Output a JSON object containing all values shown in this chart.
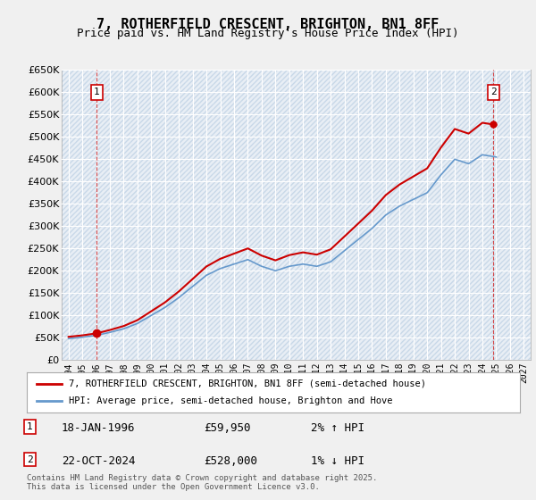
{
  "title": "7, ROTHERFIELD CRESCENT, BRIGHTON, BN1 8FF",
  "subtitle": "Price paid vs. HM Land Registry's House Price Index (HPI)",
  "bg_color": "#dde8f0",
  "plot_bg_color": "#e8eef5",
  "grid_color": "#ffffff",
  "hatch_color": "#c8d8e8",
  "red_line_color": "#cc0000",
  "blue_line_color": "#6699cc",
  "sale1_year": 1996.05,
  "sale1_price": 59950,
  "sale2_year": 2024.81,
  "sale2_price": 528000,
  "legend_line1": "7, ROTHERFIELD CRESCENT, BRIGHTON, BN1 8FF (semi-detached house)",
  "legend_line2": "HPI: Average price, semi-detached house, Brighton and Hove",
  "annotation1_date": "18-JAN-1996",
  "annotation1_price": "£59,950",
  "annotation1_hpi": "2% ↑ HPI",
  "annotation2_date": "22-OCT-2024",
  "annotation2_price": "£528,000",
  "annotation2_hpi": "1% ↓ HPI",
  "footer": "Contains HM Land Registry data © Crown copyright and database right 2025.\nThis data is licensed under the Open Government Licence v3.0.",
  "ylim": [
    0,
    650000
  ],
  "yticks": [
    0,
    50000,
    100000,
    150000,
    200000,
    250000,
    300000,
    350000,
    400000,
    450000,
    500000,
    550000,
    600000,
    650000
  ],
  "xlabel_years": [
    1994,
    1995,
    1996,
    1997,
    1998,
    1999,
    2000,
    2001,
    2002,
    2003,
    2004,
    2005,
    2006,
    2007,
    2008,
    2009,
    2010,
    2011,
    2012,
    2013,
    2014,
    2015,
    2016,
    2017,
    2018,
    2019,
    2020,
    2021,
    2022,
    2023,
    2024,
    2025,
    2026,
    2027
  ],
  "hpi_years": [
    1994,
    1995,
    1996,
    1997,
    1998,
    1999,
    2000,
    2001,
    2002,
    2003,
    2004,
    2005,
    2006,
    2007,
    2008,
    2009,
    2010,
    2011,
    2012,
    2013,
    2014,
    2015,
    2016,
    2017,
    2018,
    2019,
    2020,
    2021,
    2022,
    2023,
    2024,
    2025
  ],
  "hpi_values": [
    48000,
    51000,
    55000,
    62000,
    70000,
    82000,
    100000,
    118000,
    140000,
    165000,
    190000,
    205000,
    215000,
    225000,
    210000,
    200000,
    210000,
    215000,
    210000,
    220000,
    245000,
    270000,
    295000,
    325000,
    345000,
    360000,
    375000,
    415000,
    450000,
    440000,
    460000,
    455000
  ],
  "price_paid_years": [
    1996.05,
    2024.81
  ],
  "price_paid_values": [
    59950,
    528000
  ]
}
